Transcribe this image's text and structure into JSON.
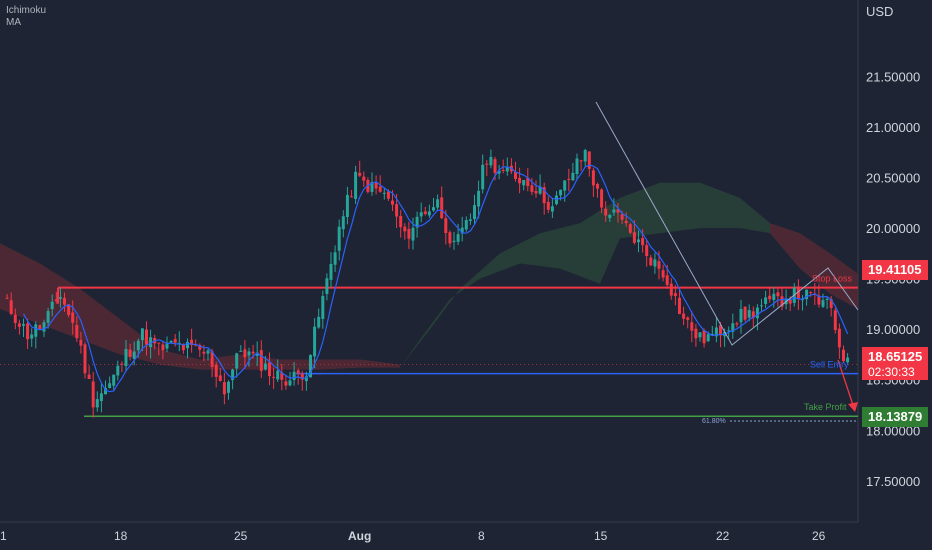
{
  "legend": {
    "indicator1": "Ichimoku",
    "indicator2": "MA"
  },
  "currency": "USD",
  "colors": {
    "background": "#1e2433",
    "up": "#26a69a",
    "down": "#f23645",
    "ma": "#2962ff",
    "stop_loss": "#f23645",
    "sell_entry": "#2962ff",
    "take_profit": "#43a047",
    "cloud_bear": "#5b2a35",
    "cloud_bull": "#28433a"
  },
  "annotations": {
    "stop_loss_label": "Stop Loss",
    "stop_loss_price": "19.41105",
    "sell_entry_label": "Sell Entry",
    "take_profit_label": "Take Profit",
    "take_profit_price": "18.13879",
    "fib_label": "61.80%",
    "last_price": "18.65125",
    "countdown": "02:30:33"
  },
  "chart_data": {
    "type": "candlestick",
    "title": "",
    "ylim": [
      17.2,
      21.6
    ],
    "y_ticks": [
      "17.50000",
      "18.00000",
      "18.50000",
      "19.00000",
      "19.50000",
      "20.00000",
      "20.50000",
      "21.00000",
      "21.50000"
    ],
    "x_ticks": [
      "1",
      "18",
      "25",
      "Aug",
      "8",
      "15",
      "22",
      "26"
    ],
    "levels": {
      "stop_loss": 19.41105,
      "sell_entry": 18.56,
      "take_profit": 18.13879,
      "last_price": 18.65125
    },
    "close_path": [
      [
        0,
        19.3
      ],
      [
        6,
        18.95
      ],
      [
        10,
        19.05
      ],
      [
        14,
        19.35
      ],
      [
        18,
        18.95
      ],
      [
        22,
        18.3
      ],
      [
        26,
        18.45
      ],
      [
        30,
        18.75
      ],
      [
        34,
        18.95
      ],
      [
        38,
        18.8
      ],
      [
        42,
        18.85
      ],
      [
        46,
        18.8
      ],
      [
        50,
        18.75
      ],
      [
        54,
        18.4
      ],
      [
        58,
        18.8
      ],
      [
        62,
        18.7
      ],
      [
        66,
        18.55
      ],
      [
        70,
        18.5
      ],
      [
        74,
        18.6
      ],
      [
        78,
        19.3
      ],
      [
        82,
        20.0
      ],
      [
        86,
        20.5
      ],
      [
        90,
        20.4
      ],
      [
        94,
        20.3
      ],
      [
        98,
        19.9
      ],
      [
        102,
        20.15
      ],
      [
        106,
        20.25
      ],
      [
        110,
        19.8
      ],
      [
        114,
        20.1
      ],
      [
        118,
        20.7
      ],
      [
        122,
        20.55
      ],
      [
        126,
        20.5
      ],
      [
        130,
        20.4
      ],
      [
        134,
        20.2
      ],
      [
        138,
        20.5
      ],
      [
        142,
        20.75
      ],
      [
        146,
        20.2
      ],
      [
        150,
        20.1
      ],
      [
        154,
        19.9
      ],
      [
        158,
        19.7
      ],
      [
        162,
        19.5
      ],
      [
        166,
        19.1
      ],
      [
        170,
        18.9
      ],
      [
        174,
        18.95
      ],
      [
        178,
        19.1
      ],
      [
        182,
        19.15
      ],
      [
        186,
        19.25
      ],
      [
        190,
        19.3
      ],
      [
        194,
        19.35
      ],
      [
        198,
        19.3
      ],
      [
        202,
        19.2
      ],
      [
        204,
        18.85
      ],
      [
        206,
        18.65
      ]
    ]
  }
}
